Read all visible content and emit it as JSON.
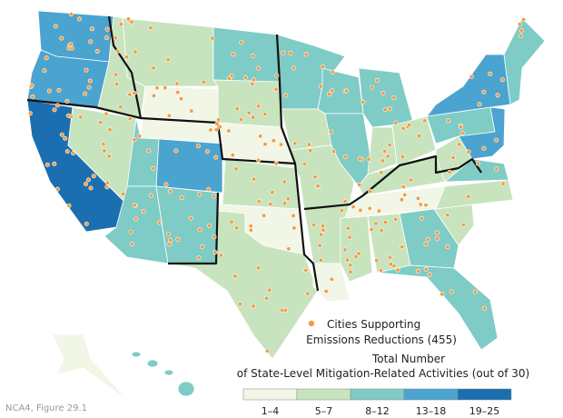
{
  "cities_legend": {
    "label_lines": [
      "Cities Supporting",
      "Emissions Reductions (455)"
    ],
    "color": "#f39b3f"
  },
  "activity_legend": {
    "title_lines": [
      "Total Number",
      "of State-Level Mitigation-Related Activities (out of 30)"
    ],
    "classes": [
      {
        "label": "1–4",
        "color": "#f1f6e6"
      },
      {
        "label": "5–7",
        "color": "#c7e4bf"
      },
      {
        "label": "8–12",
        "color": "#7fcbc6"
      },
      {
        "label": "13–18",
        "color": "#4ba3d0"
      },
      {
        "label": "19–25",
        "color": "#1b6fb1"
      }
    ]
  },
  "credit": "NCA4, Figure 29.1"
}
